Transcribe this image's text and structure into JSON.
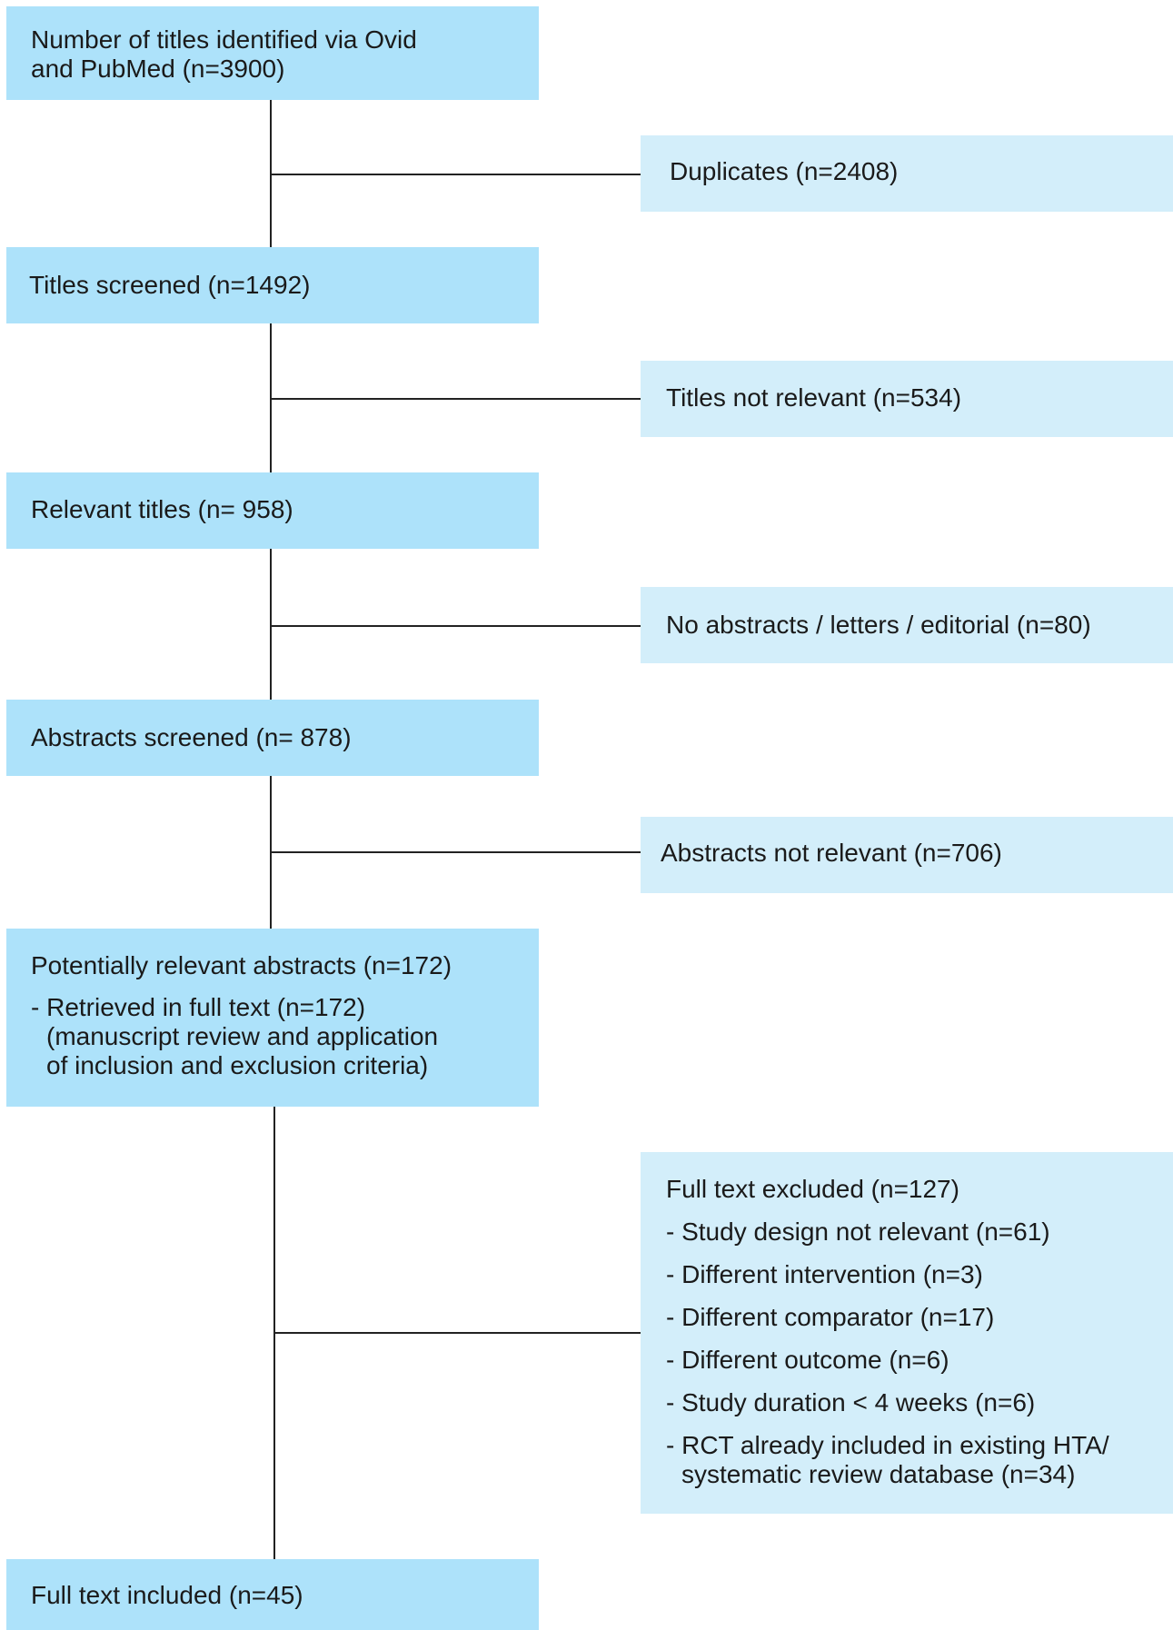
{
  "main_steps": {
    "identified": [
      "Number of titles identified via Ovid",
      "and PubMed (n=3900)"
    ],
    "titles_screened": "Titles screened (n=1492)",
    "relevant_titles": "Relevant titles (n= 958)",
    "abstracts_screened": "Abstracts screened (n= 878)",
    "potentially_relevant": {
      "title": "Potentially relevant abstracts (n=172)",
      "item": "- Retrieved in full text (n=172)",
      "detail": [
        "(manuscript review and application",
        "of inclusion and exclusion criteria)"
      ]
    },
    "full_text_included": "Full text included (n=45)"
  },
  "exclusions": {
    "duplicates": "Duplicates (n=2408)",
    "titles_not_relevant": "Titles not relevant (n=534)",
    "no_abstracts": "No abstracts / letters / editorial (n=80)",
    "abstracts_not_relevant": "Abstracts not relevant (n=706)",
    "full_text_excluded": {
      "title": "Full text excluded (n=127)",
      "items": [
        "- Study design not relevant (n=61)",
        "- Different intervention (n=3)",
        "- Different comparator (n=17)",
        "- Different outcome (n=6)",
        "- Study duration < 4 weeks (n=6)",
        "- RCT already included in existing HTA/"
      ],
      "item_continuation": "systematic review database (n=34)"
    }
  },
  "colors": {
    "main_box": "#ade2fa",
    "side_box": "#d3eefa",
    "connector": "#222222"
  }
}
